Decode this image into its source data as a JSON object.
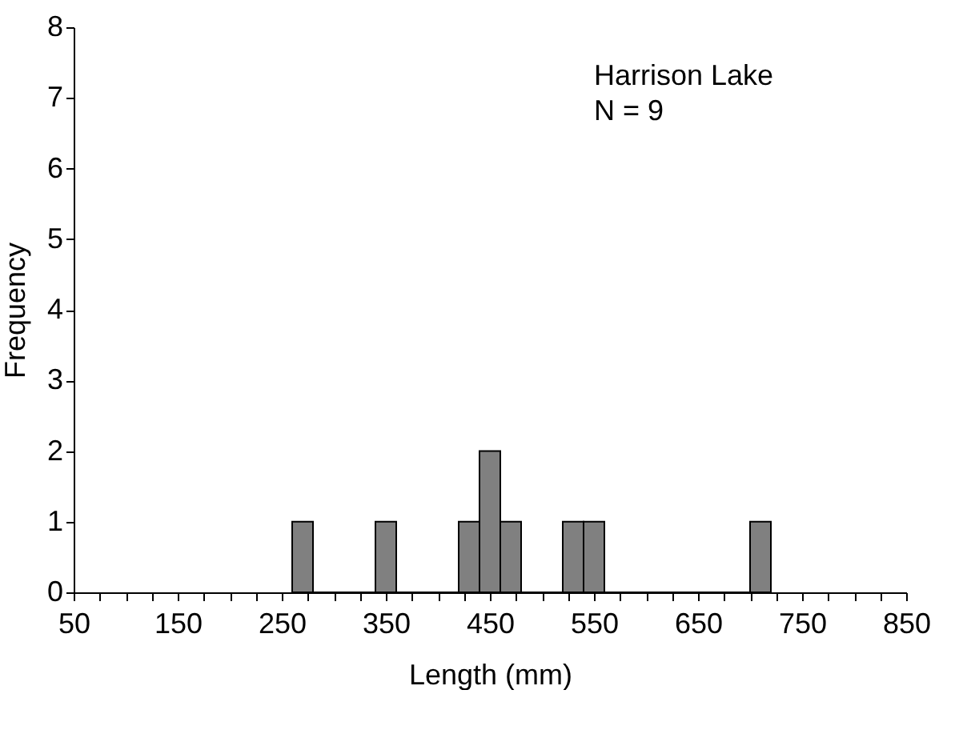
{
  "chart_data": {
    "type": "histogram",
    "xlabel": "Length (mm)",
    "ylabel": "Frequency",
    "bins": [
      260,
      280,
      300,
      320,
      340,
      360,
      380,
      400,
      420,
      440,
      460,
      480,
      500,
      520,
      540,
      560,
      580,
      600,
      620,
      640,
      660,
      680,
      700,
      720
    ],
    "values": [
      1,
      0,
      0,
      0,
      1,
      0,
      0,
      0,
      1,
      2,
      1,
      0,
      0,
      1,
      1,
      0,
      0,
      0,
      0,
      0,
      0,
      0,
      1
    ],
    "color": "#808080",
    "xlim": [
      50,
      850
    ],
    "xticks": [
      50,
      {
        "value": 75,
        "label": null
      },
      {
        "value": 100,
        "label": null
      },
      {
        "value": 125,
        "label": null
      },
      150,
      {
        "value": 175,
        "label": null
      },
      {
        "value": 200,
        "label": null
      },
      {
        "value": 225,
        "label": null
      },
      250,
      {
        "value": 275,
        "label": null
      },
      {
        "value": 300,
        "label": null
      },
      {
        "value": 325,
        "label": null
      },
      350,
      {
        "value": 375,
        "label": null
      },
      {
        "value": 400,
        "label": null
      },
      {
        "value": 425,
        "label": null
      },
      450,
      {
        "value": 475,
        "label": null
      },
      {
        "value": 500,
        "label": null
      },
      {
        "value": 525,
        "label": null
      },
      550,
      {
        "value": 575,
        "label": null
      },
      {
        "value": 600,
        "label": null
      },
      {
        "value": 625,
        "label": null
      },
      650,
      {
        "value": 675,
        "label": null
      },
      {
        "value": 700,
        "label": null
      },
      {
        "value": 725,
        "label": null
      },
      750,
      {
        "value": 775,
        "label": null
      },
      {
        "value": 800,
        "label": null
      },
      {
        "value": 825,
        "label": null
      },
      850
    ],
    "ylim": [
      0,
      8
    ],
    "yticks": [
      0,
      1,
      2,
      3,
      4,
      5,
      6,
      7,
      8
    ],
    "grid": false,
    "annotations": [
      "Harrison Lake",
      "N = 9"
    ]
  }
}
